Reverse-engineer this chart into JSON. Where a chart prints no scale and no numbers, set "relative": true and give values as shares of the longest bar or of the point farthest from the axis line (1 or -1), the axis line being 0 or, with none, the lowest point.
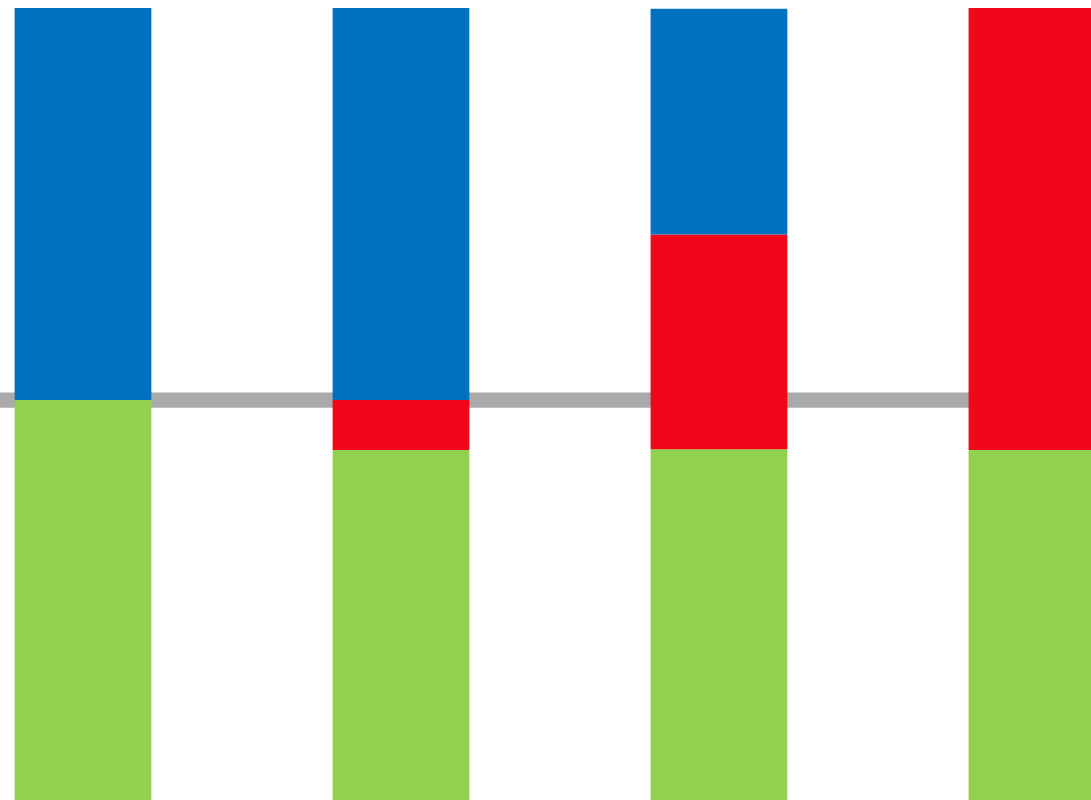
{
  "chart_data": {
    "type": "bar",
    "relative": true,
    "stacked": true,
    "categories": [
      null,
      null,
      null,
      null
    ],
    "series": [
      {
        "color": "#92d050",
        "values": [
          0.505,
          0.442,
          0.443,
          0.442
        ]
      },
      {
        "color": "#f20619",
        "values": [
          0,
          0.063,
          0.271,
          0.558
        ]
      },
      {
        "color": "#0070c0",
        "values": [
          0.495,
          0.495,
          0.285,
          0
        ]
      }
    ],
    "ref_lines": [
      {
        "axis": "y",
        "value": 0.505,
        "color": "#aaaaaa"
      }
    ],
    "grid": false,
    "legend": false
  }
}
